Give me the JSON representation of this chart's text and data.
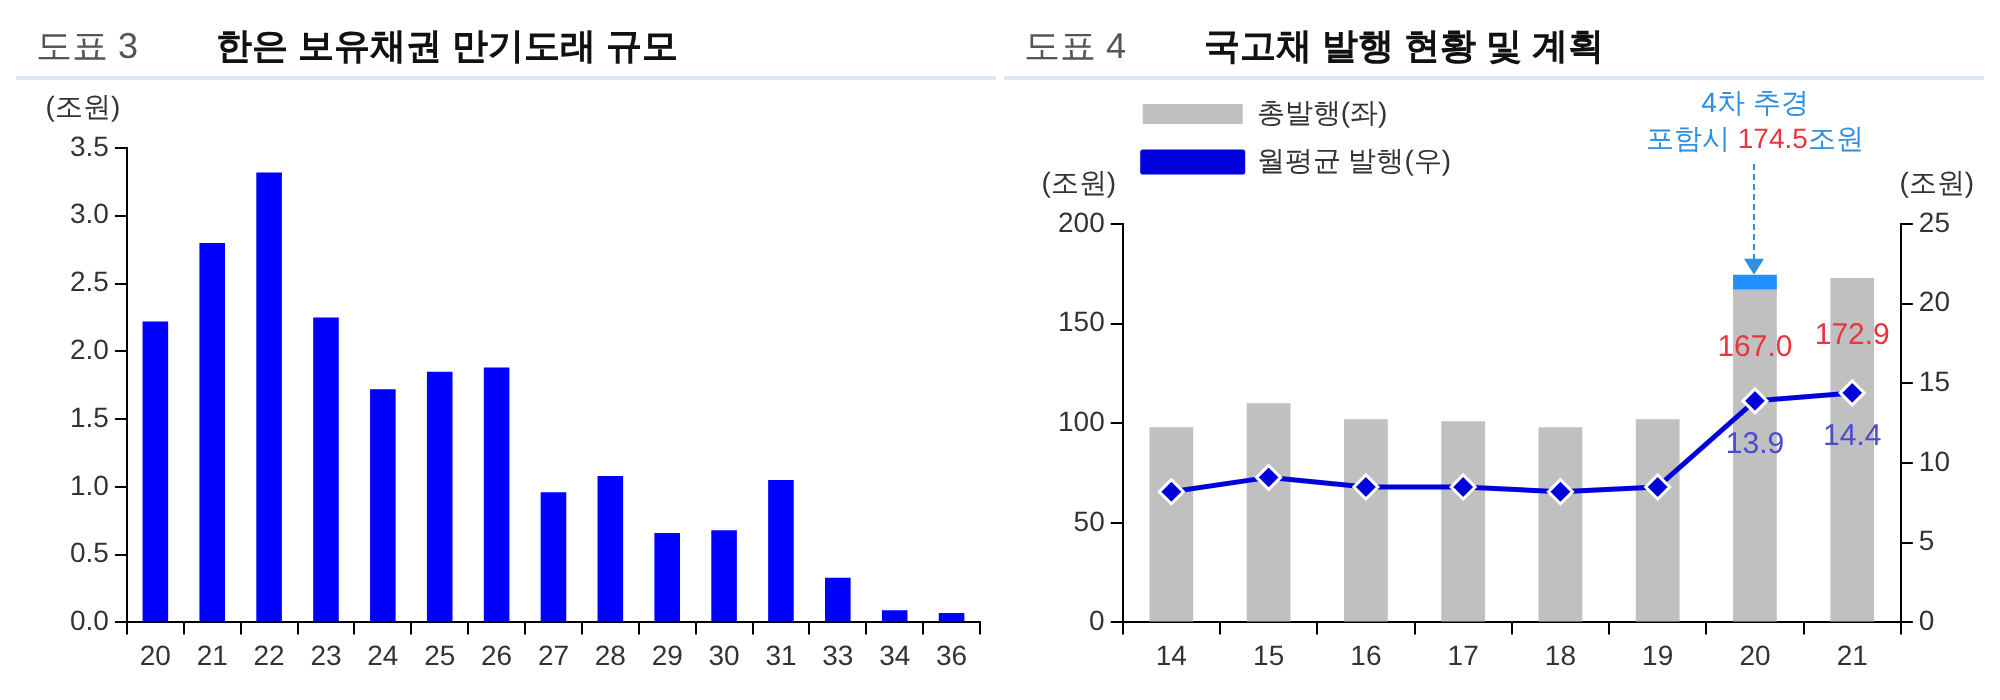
{
  "chart_data": [
    {
      "type": "bar",
      "title": "한은 보유채권 만기도래 규모",
      "annotations": [
        "도표 3"
      ],
      "ylabel": "(조원)",
      "categories": [
        "20",
        "21",
        "22",
        "23",
        "24",
        "25",
        "26",
        "27",
        "28",
        "29",
        "30",
        "31",
        "33",
        "34",
        "36"
      ],
      "values": [
        2.22,
        2.8,
        3.32,
        2.25,
        1.72,
        1.85,
        1.88,
        0.96,
        1.08,
        0.66,
        0.68,
        1.05,
        0.33,
        0.09,
        0.07
      ],
      "color": "#0000ff",
      "ylim": [
        0,
        3.5
      ],
      "yticks": [
        {
          "value": 0,
          "label": "0.0"
        },
        0.5,
        {
          "value": 1,
          "label": "1.0"
        },
        1.5,
        {
          "value": 2,
          "label": "2.0"
        },
        2.5,
        {
          "value": 3,
          "label": "3.0"
        },
        3.5
      ],
      "grid": false
    },
    {
      "type": "bar",
      "title": "국고채 발행 현황 및 계획",
      "ylabel": "(조원)",
      "y2label": "(조원)",
      "annotations": [
        "도표 4",
        {
          "text": "4차 추경\n포함시 174.5조원",
          "x": "20",
          "y": 174.5
        }
      ],
      "categories": [
        "14",
        "15",
        "16",
        "17",
        "18",
        "19",
        "20",
        "21"
      ],
      "stacked": true,
      "series": [
        {
          "name": "총발행(좌)",
          "color": "#c0c0c0",
          "values": [
            98,
            110,
            102,
            101,
            98,
            102,
            167.0,
            172.9
          ],
          "value_labels": [
            null,
            null,
            null,
            null,
            null,
            null,
            "167.0",
            "172.9"
          ]
        },
        {
          "color": "#1e90ff",
          "values": [
            null,
            null,
            null,
            null,
            null,
            null,
            7.5,
            null
          ]
        },
        {
          "name": "월평균 발행(우)",
          "type": "line",
          "axis": "y2",
          "color": "#0000dd",
          "marker": "diamond",
          "line_style": "solid",
          "values": [
            8.2,
            9.1,
            8.5,
            8.5,
            8.2,
            8.5,
            13.9,
            14.4
          ],
          "value_labels": [
            null,
            null,
            null,
            null,
            null,
            null,
            "13.9",
            "14.4"
          ]
        }
      ],
      "ylim": [
        0,
        200
      ],
      "yticks": [
        0,
        50,
        100,
        150,
        200
      ],
      "y2lim": [
        0,
        25
      ],
      "y2ticks": [
        0,
        5,
        10,
        15,
        20,
        25
      ],
      "grid": false,
      "legend": "top left"
    }
  ]
}
